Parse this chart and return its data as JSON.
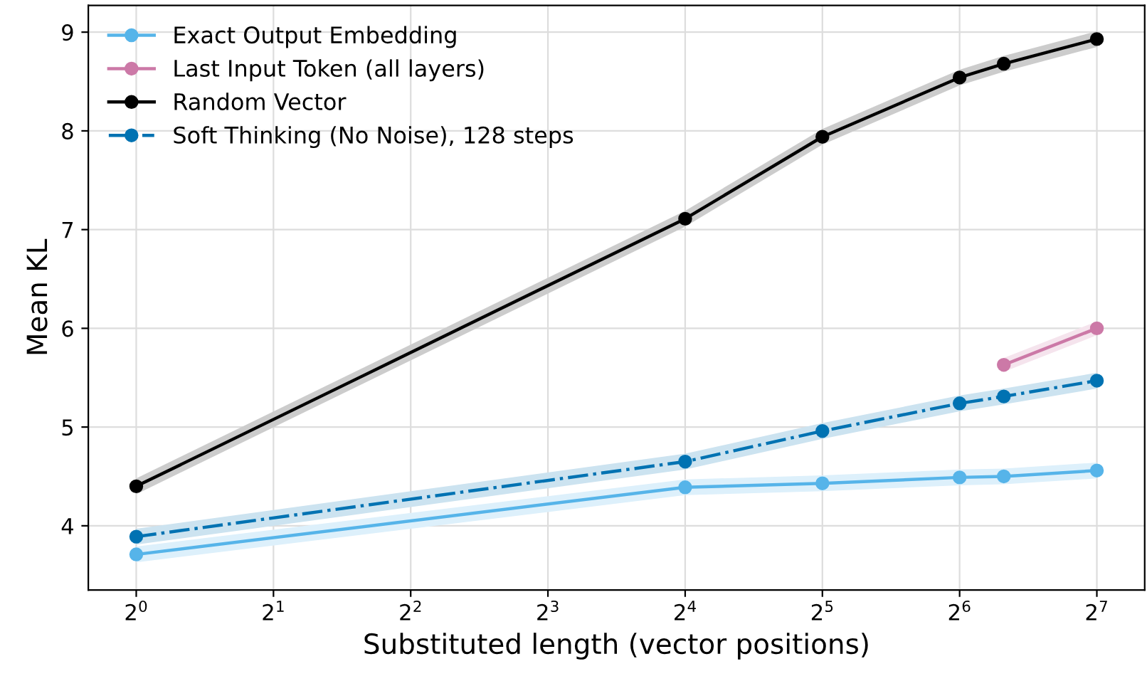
{
  "chart_data": {
    "type": "line",
    "xlabel": "Substituted length (vector positions)",
    "ylabel": "Mean KL",
    "log": "x",
    "xlim": [
      0.785,
      163
    ],
    "ylim": [
      3.35,
      9.27
    ],
    "xticks": [
      {
        "value": 1,
        "label": "2$^{0}$"
      },
      {
        "value": 2,
        "label": "2$^{1}$"
      },
      {
        "value": 4,
        "label": "2$^{2}$"
      },
      {
        "value": 8,
        "label": "2$^{3}$"
      },
      {
        "value": 16,
        "label": "2$^{4}$"
      },
      {
        "value": 32,
        "label": "2$^{5}$"
      },
      {
        "value": 64,
        "label": "2$^{6}$"
      },
      {
        "value": 128,
        "label": "2$^{7}$"
      }
    ],
    "yticks": [
      4,
      5,
      6,
      7,
      8,
      9
    ],
    "grid": true,
    "legend": "top left",
    "marker": "circle",
    "series": [
      {
        "name": "Exact Output Embedding",
        "color": "#56b4e9",
        "x": [
          1,
          16,
          32,
          64,
          80,
          128
        ],
        "values": [
          3.71,
          4.39,
          4.43,
          4.49,
          4.5,
          4.56
        ],
        "lower": [
          3.63,
          4.31,
          4.35,
          4.41,
          4.42,
          4.48
        ],
        "upper": [
          3.79,
          4.47,
          4.51,
          4.57,
          4.58,
          4.64
        ]
      },
      {
        "name": "Last Input Token (all layers)",
        "color": "#cc79a7",
        "x": [
          80,
          128
        ],
        "values": [
          5.63,
          6.0
        ],
        "lower": [
          5.56,
          5.93
        ],
        "upper": [
          5.7,
          6.07
        ]
      },
      {
        "name": "Random Vector",
        "color": "#000000",
        "x": [
          1,
          16,
          32,
          64,
          80,
          128
        ],
        "values": [
          4.4,
          7.11,
          7.94,
          8.54,
          8.68,
          8.93
        ],
        "lower": [
          4.32,
          7.03,
          7.86,
          8.46,
          8.6,
          8.85
        ],
        "upper": [
          4.48,
          7.19,
          8.02,
          8.62,
          8.76,
          9.01
        ]
      },
      {
        "name": "Soft Thinking (No Noise), 128 steps",
        "color": "#0072b2",
        "line_style": "dashdot",
        "x": [
          1,
          16,
          32,
          64,
          80,
          128
        ],
        "values": [
          3.89,
          4.65,
          4.96,
          5.24,
          5.31,
          5.47
        ],
        "lower": [
          3.81,
          4.57,
          4.88,
          5.16,
          5.23,
          5.39
        ],
        "upper": [
          3.97,
          4.73,
          5.04,
          5.32,
          5.39,
          5.55
        ]
      }
    ]
  }
}
